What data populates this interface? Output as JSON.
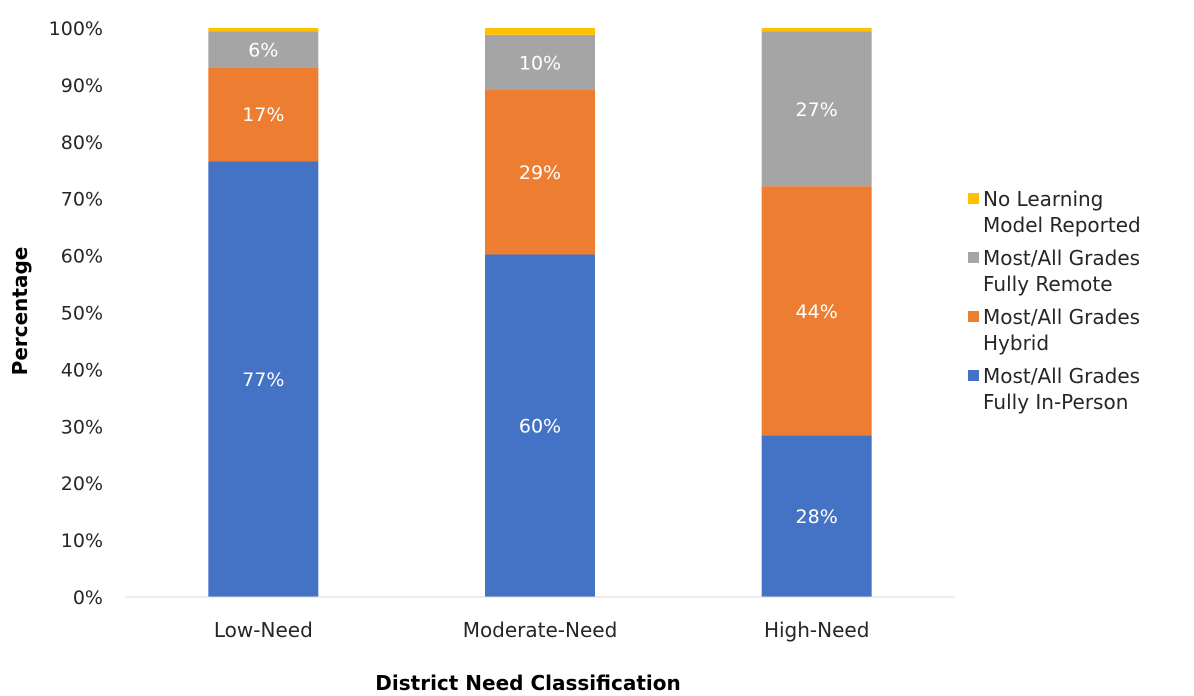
{
  "chart_data": {
    "type": "bar",
    "stacked": true,
    "categories": [
      "Low-Need",
      "Moderate-Need",
      "High-Need"
    ],
    "series": [
      {
        "name": "Most/All Grades Fully In-Person",
        "color": "#4472C4",
        "values": [
          76.6,
          60.2,
          28.4
        ],
        "labels": [
          "77%",
          "60%",
          "28%"
        ]
      },
      {
        "name": "Most/All Grades Hybrid",
        "color": "#ED7D31",
        "values": [
          16.5,
          28.9,
          43.8
        ],
        "labels": [
          "17%",
          "29%",
          "44%"
        ]
      },
      {
        "name": "Most/All Grades Fully Remote",
        "color": "#A5A5A5",
        "values": [
          6.3,
          9.7,
          27.2
        ],
        "labels": [
          "6%",
          "10%",
          "27%"
        ]
      },
      {
        "name": "No Learning Model Reported",
        "color": "#FFC000",
        "values": [
          0.6,
          1.2,
          0.6
        ],
        "labels": [
          "",
          "",
          ""
        ]
      }
    ],
    "legend_order": [
      3,
      2,
      1,
      0
    ],
    "legend_lines": [
      [
        "No Learning",
        "Model Reported"
      ],
      [
        "Most/All Grades",
        "Fully Remote"
      ],
      [
        "Most/All Grades",
        "Hybrid"
      ],
      [
        "Most/All Grades",
        "Fully In-Person"
      ]
    ],
    "legend_position": "right",
    "xlabel": "District Need Classification",
    "ylabel": "Percentage",
    "ylim": [
      0,
      100
    ],
    "yticks": [
      "0%",
      "10%",
      "20%",
      "30%",
      "40%",
      "50%",
      "60%",
      "70%",
      "80%",
      "90%",
      "100%"
    ],
    "grid": false
  }
}
